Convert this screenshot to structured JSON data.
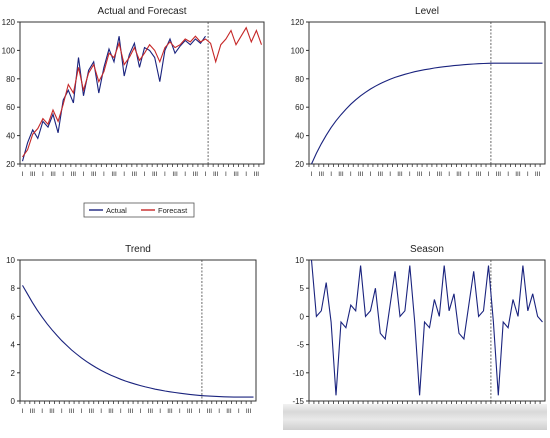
{
  "chart_data": [
    {
      "id": "actual_forecast",
      "type": "line",
      "title": "Actual and Forecast",
      "xlabel": "",
      "ylabel": "",
      "ylim": [
        20,
        120
      ],
      "yticks": [
        20,
        40,
        60,
        80,
        100,
        120
      ],
      "x_tick_labels": [
        "I",
        "II",
        "III",
        "IV",
        "I",
        "II",
        "III",
        "IV",
        "I",
        "II",
        "III",
        "IV",
        "I",
        "II",
        "III",
        "IV",
        "I",
        "II",
        "III",
        "IV",
        "I",
        "II",
        "III",
        "IV",
        "I",
        "II",
        "III",
        "IV",
        "I",
        "II",
        "III",
        "IV",
        "I",
        "II",
        "III",
        "IV",
        "I",
        "II",
        "III",
        "IV",
        "I",
        "II",
        "III",
        "IV",
        "I",
        "II",
        "III",
        "IV"
      ],
      "n_points": 48,
      "forecast_start_index": 37,
      "series": [
        {
          "name": "Actual",
          "color": "#1a237e",
          "values": [
            22,
            35,
            44,
            38,
            50,
            46,
            55,
            42,
            65,
            72,
            63,
            95,
            68,
            86,
            92,
            70,
            88,
            101,
            92,
            110,
            82,
            97,
            105,
            88,
            102,
            100,
            95,
            78,
            100,
            108,
            98,
            103,
            107,
            104,
            108,
            105,
            110,
            null,
            null,
            null,
            null,
            null,
            null,
            null,
            null,
            null,
            null,
            null
          ]
        },
        {
          "name": "Forecast",
          "color": "#c62828",
          "values": [
            25,
            30,
            41,
            45,
            52,
            48,
            58,
            50,
            62,
            76,
            70,
            88,
            72,
            84,
            90,
            78,
            85,
            98,
            95,
            105,
            90,
            95,
            102,
            93,
            98,
            104,
            100,
            92,
            102,
            106,
            102,
            104,
            108,
            106,
            110,
            106,
            108,
            105,
            92,
            104,
            108,
            114,
            104,
            110,
            116,
            106,
            114,
            104
          ]
        }
      ],
      "legend": [
        "Actual",
        "Forecast"
      ],
      "legend_placement": "below"
    },
    {
      "id": "level",
      "type": "line",
      "title": "Level",
      "xlabel": "",
      "ylabel": "",
      "ylim": [
        20,
        120
      ],
      "yticks": [
        20,
        40,
        60,
        80,
        100,
        120
      ],
      "x_tick_labels": [
        "I",
        "II",
        "III",
        "IV",
        "I",
        "II",
        "III",
        "IV",
        "I",
        "II",
        "III",
        "IV",
        "I",
        "II",
        "III",
        "IV",
        "I",
        "II",
        "III",
        "IV",
        "I",
        "II",
        "III",
        "IV",
        "I",
        "II",
        "III",
        "IV",
        "I",
        "II",
        "III",
        "IV",
        "I",
        "II",
        "III",
        "IV",
        "I",
        "II",
        "III",
        "IV",
        "I",
        "II",
        "III",
        "IV",
        "I",
        "II",
        "III",
        "IV"
      ],
      "n_points": 48,
      "forecast_start_index": 37,
      "series": [
        {
          "name": "Level",
          "color": "#1a237e",
          "values": [
            20,
            27.5,
            34.2,
            40.2,
            45.6,
            50.4,
            54.7,
            58.6,
            62.1,
            65.2,
            68.0,
            70.5,
            72.8,
            74.8,
            76.6,
            78.2,
            79.7,
            81.0,
            82.1,
            83.2,
            84.1,
            85.0,
            85.7,
            86.4,
            87.0,
            87.6,
            88.1,
            88.5,
            88.9,
            89.3,
            89.6,
            89.9,
            90.2,
            90.4,
            90.6,
            90.8,
            90.9,
            91,
            91,
            91,
            91,
            91,
            91,
            91,
            91,
            91,
            91,
            91
          ]
        }
      ]
    },
    {
      "id": "trend",
      "type": "line",
      "title": "Trend",
      "xlabel": "",
      "ylabel": "",
      "ylim": [
        0,
        10
      ],
      "yticks": [
        0,
        2,
        4,
        6,
        8,
        10
      ],
      "x_tick_labels": [
        "I",
        "II",
        "III",
        "IV",
        "I",
        "II",
        "III",
        "IV",
        "I",
        "II",
        "III",
        "IV",
        "I",
        "II",
        "III",
        "IV",
        "I",
        "II",
        "III",
        "IV",
        "I",
        "II",
        "III",
        "IV",
        "I",
        "II",
        "III",
        "IV",
        "I",
        "II",
        "III",
        "IV",
        "I",
        "II",
        "III",
        "IV",
        "I",
        "II",
        "III",
        "IV",
        "I",
        "II",
        "III",
        "IV",
        "I",
        "II",
        "III",
        "IV"
      ],
      "n_points": 48,
      "forecast_start_index": 37,
      "series": [
        {
          "name": "Trend",
          "color": "#1a237e",
          "values": [
            8.2,
            7.6,
            7.0,
            6.45,
            5.95,
            5.48,
            5.05,
            4.65,
            4.28,
            3.94,
            3.62,
            3.33,
            3.06,
            2.81,
            2.58,
            2.37,
            2.17,
            1.99,
            1.83,
            1.68,
            1.54,
            1.41,
            1.3,
            1.19,
            1.09,
            1.0,
            0.92,
            0.84,
            0.77,
            0.71,
            0.65,
            0.6,
            0.55,
            0.51,
            0.47,
            0.43,
            0.4,
            0.37,
            0.35,
            0.33,
            0.31,
            0.3,
            0.29,
            0.28,
            0.28,
            0.28,
            0.28,
            0.28
          ]
        }
      ]
    },
    {
      "id": "season",
      "type": "line",
      "title": "Season",
      "xlabel": "",
      "ylabel": "",
      "ylim": [
        -15,
        10
      ],
      "yticks": [
        -15,
        -10,
        -5,
        0,
        5,
        10
      ],
      "x_tick_labels": [
        "I",
        "II",
        "III",
        "IV",
        "I",
        "II",
        "III",
        "IV",
        "I",
        "II",
        "III",
        "IV",
        "I",
        "II",
        "III",
        "IV",
        "I",
        "II",
        "III",
        "IV",
        "I",
        "II",
        "III",
        "IV",
        "I",
        "II",
        "III",
        "IV",
        "I",
        "II",
        "III",
        "IV",
        "I",
        "II",
        "III",
        "IV",
        "I",
        "II",
        "III",
        "IV",
        "I",
        "II",
        "III",
        "IV",
        "I",
        "II",
        "III",
        "IV"
      ],
      "n_points": 48,
      "forecast_start_index": 37,
      "series": [
        {
          "name": "Season",
          "color": "#1a237e",
          "values": [
            10,
            0,
            1,
            6,
            -1,
            -14,
            -1,
            -2,
            2,
            1,
            9,
            0,
            1,
            5,
            -3,
            -4,
            2,
            8,
            0,
            1,
            9,
            -1,
            -14,
            -1,
            -2,
            3,
            0,
            9,
            1,
            4,
            -3,
            -4,
            2,
            8,
            0,
            1,
            9,
            -1,
            -14,
            -1,
            -2,
            3,
            0,
            9,
            1,
            4,
            0,
            -1
          ]
        }
      ]
    }
  ]
}
